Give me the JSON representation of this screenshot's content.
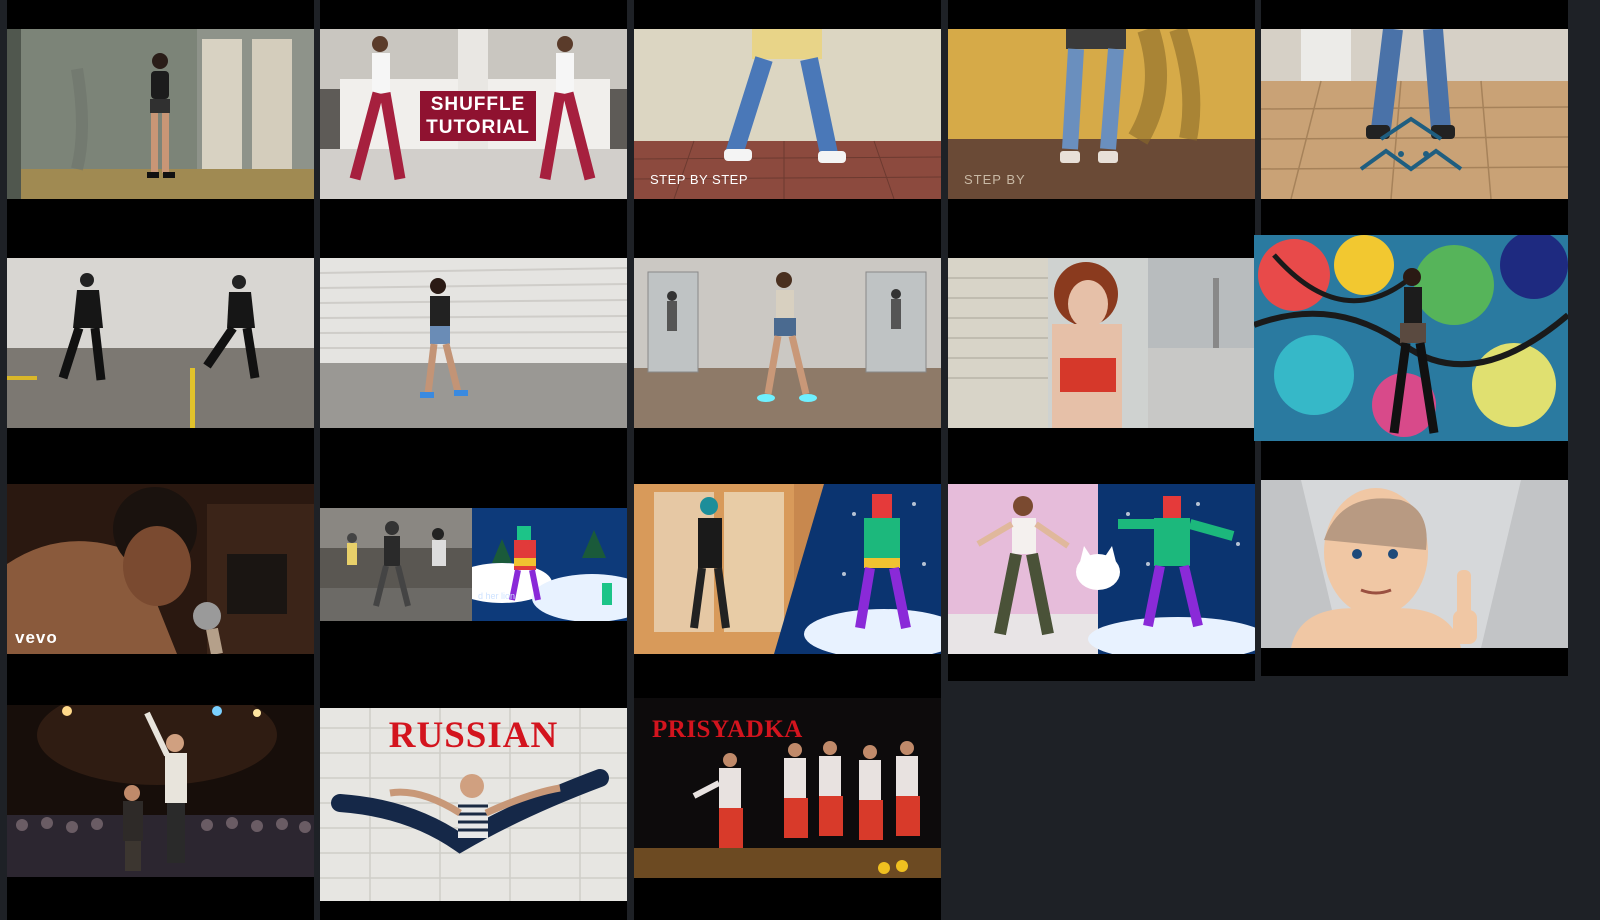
{
  "overlays": {
    "shuffle_line1": "SHUFFLE",
    "shuffle_line2": "TUTORIAL",
    "step_by_step": "STEP BY STEP",
    "step_by": "STEP BY",
    "vevo": "vevo",
    "subtitle_fragment": "d her lion",
    "russian": "RUSSIAN",
    "prisyadka": "PRISYADKA"
  }
}
